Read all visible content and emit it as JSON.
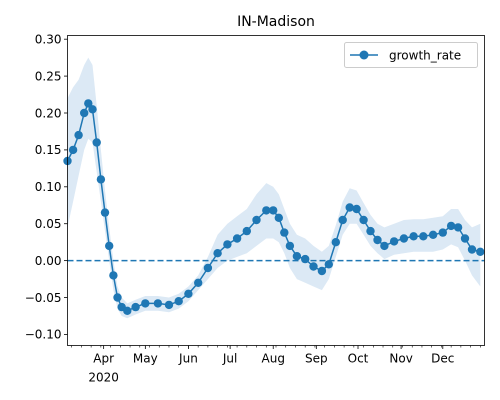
{
  "chart_data": {
    "type": "line",
    "title": "IN-Madison",
    "xlabel": "",
    "ylabel": "",
    "x_range": [
      "2020-03-06",
      "2020-12-31"
    ],
    "ylim": [
      -0.115,
      0.305
    ],
    "y_ticks": [
      -0.1,
      -0.05,
      0.0,
      0.05,
      0.1,
      0.15,
      0.2,
      0.25,
      0.3
    ],
    "y_tick_labels": [
      "−0.10",
      "−0.05",
      "0.00",
      "0.05",
      "0.10",
      "0.15",
      "0.20",
      "0.25",
      "0.30"
    ],
    "x_tick_labels": [
      {
        "date": "2020-04-01",
        "label": "Apr",
        "sublabel": "2020"
      },
      {
        "date": "2020-05-01",
        "label": "May"
      },
      {
        "date": "2020-06-01",
        "label": "Jun"
      },
      {
        "date": "2020-07-01",
        "label": "Jul"
      },
      {
        "date": "2020-08-01",
        "label": "Aug"
      },
      {
        "date": "2020-09-01",
        "label": "Sep"
      },
      {
        "date": "2020-10-01",
        "label": "Oct"
      },
      {
        "date": "2020-11-01",
        "label": "Nov"
      },
      {
        "date": "2020-12-01",
        "label": "Dec"
      }
    ],
    "reference_line": {
      "y": 0.0,
      "style": "dashed",
      "color": "#1f77b4"
    },
    "grid": false,
    "legend_position": "top-right",
    "series": [
      {
        "name": "growth_rate",
        "color": "#1f77b4",
        "band_color": "#dce9f5",
        "points": [
          {
            "x": "2020-03-06",
            "y": 0.135,
            "lo": 0.045,
            "hi": 0.22
          },
          {
            "x": "2020-03-10",
            "y": 0.15,
            "lo": 0.08,
            "hi": 0.235
          },
          {
            "x": "2020-03-14",
            "y": 0.17,
            "lo": 0.115,
            "hi": 0.245
          },
          {
            "x": "2020-03-18",
            "y": 0.2,
            "lo": 0.15,
            "hi": 0.265
          },
          {
            "x": "2020-03-21",
            "y": 0.213,
            "lo": 0.165,
            "hi": 0.275
          },
          {
            "x": "2020-03-24",
            "y": 0.205,
            "lo": 0.16,
            "hi": 0.265
          },
          {
            "x": "2020-03-27",
            "y": 0.16,
            "lo": 0.12,
            "hi": 0.21
          },
          {
            "x": "2020-03-30",
            "y": 0.11,
            "lo": 0.08,
            "hi": 0.15
          },
          {
            "x": "2020-04-02",
            "y": 0.065,
            "lo": 0.04,
            "hi": 0.095
          },
          {
            "x": "2020-04-05",
            "y": 0.02,
            "lo": 0.0,
            "hi": 0.045
          },
          {
            "x": "2020-04-08",
            "y": -0.02,
            "lo": -0.04,
            "hi": 0.0
          },
          {
            "x": "2020-04-11",
            "y": -0.05,
            "lo": -0.065,
            "hi": -0.035
          },
          {
            "x": "2020-04-14",
            "y": -0.063,
            "lo": -0.075,
            "hi": -0.05
          },
          {
            "x": "2020-04-18",
            "y": -0.068,
            "lo": -0.078,
            "hi": -0.058
          },
          {
            "x": "2020-04-24",
            "y": -0.063,
            "lo": -0.073,
            "hi": -0.053
          },
          {
            "x": "2020-05-01",
            "y": -0.058,
            "lo": -0.068,
            "hi": -0.048
          },
          {
            "x": "2020-05-10",
            "y": -0.058,
            "lo": -0.068,
            "hi": -0.048
          },
          {
            "x": "2020-05-18",
            "y": -0.06,
            "lo": -0.07,
            "hi": -0.05
          },
          {
            "x": "2020-05-25",
            "y": -0.055,
            "lo": -0.065,
            "hi": -0.045
          },
          {
            "x": "2020-06-01",
            "y": -0.045,
            "lo": -0.055,
            "hi": -0.035
          },
          {
            "x": "2020-06-08",
            "y": -0.03,
            "lo": -0.04,
            "hi": -0.02
          },
          {
            "x": "2020-06-15",
            "y": -0.01,
            "lo": -0.025,
            "hi": 0.005
          },
          {
            "x": "2020-06-22",
            "y": 0.01,
            "lo": -0.01,
            "hi": 0.035
          },
          {
            "x": "2020-06-29",
            "y": 0.022,
            "lo": 0.0,
            "hi": 0.05
          },
          {
            "x": "2020-07-06",
            "y": 0.03,
            "lo": 0.005,
            "hi": 0.06
          },
          {
            "x": "2020-07-13",
            "y": 0.04,
            "lo": 0.01,
            "hi": 0.07
          },
          {
            "x": "2020-07-20",
            "y": 0.055,
            "lo": 0.02,
            "hi": 0.09
          },
          {
            "x": "2020-07-27",
            "y": 0.068,
            "lo": 0.03,
            "hi": 0.105
          },
          {
            "x": "2020-08-01",
            "y": 0.068,
            "lo": 0.03,
            "hi": 0.1
          },
          {
            "x": "2020-08-05",
            "y": 0.058,
            "lo": 0.025,
            "hi": 0.09
          },
          {
            "x": "2020-08-09",
            "y": 0.038,
            "lo": 0.01,
            "hi": 0.07
          },
          {
            "x": "2020-08-13",
            "y": 0.02,
            "lo": -0.01,
            "hi": 0.05
          },
          {
            "x": "2020-08-18",
            "y": 0.006,
            "lo": -0.025,
            "hi": 0.035
          },
          {
            "x": "2020-08-24",
            "y": 0.002,
            "lo": -0.03,
            "hi": 0.03
          },
          {
            "x": "2020-08-30",
            "y": -0.008,
            "lo": -0.035,
            "hi": 0.02
          },
          {
            "x": "2020-09-05",
            "y": -0.014,
            "lo": -0.04,
            "hi": 0.012
          },
          {
            "x": "2020-09-10",
            "y": -0.005,
            "lo": -0.025,
            "hi": 0.02
          },
          {
            "x": "2020-09-15",
            "y": 0.025,
            "lo": 0.005,
            "hi": 0.048
          },
          {
            "x": "2020-09-20",
            "y": 0.055,
            "lo": 0.035,
            "hi": 0.08
          },
          {
            "x": "2020-09-25",
            "y": 0.072,
            "lo": 0.05,
            "hi": 0.098
          },
          {
            "x": "2020-09-30",
            "y": 0.07,
            "lo": 0.05,
            "hi": 0.095
          },
          {
            "x": "2020-10-05",
            "y": 0.055,
            "lo": 0.035,
            "hi": 0.078
          },
          {
            "x": "2020-10-10",
            "y": 0.04,
            "lo": 0.02,
            "hi": 0.062
          },
          {
            "x": "2020-10-15",
            "y": 0.028,
            "lo": 0.01,
            "hi": 0.05
          },
          {
            "x": "2020-10-20",
            "y": 0.02,
            "lo": 0.002,
            "hi": 0.045
          },
          {
            "x": "2020-10-27",
            "y": 0.026,
            "lo": 0.008,
            "hi": 0.05
          },
          {
            "x": "2020-11-03",
            "y": 0.03,
            "lo": 0.01,
            "hi": 0.055
          },
          {
            "x": "2020-11-10",
            "y": 0.033,
            "lo": 0.012,
            "hi": 0.056
          },
          {
            "x": "2020-11-17",
            "y": 0.033,
            "lo": 0.012,
            "hi": 0.056
          },
          {
            "x": "2020-11-24",
            "y": 0.035,
            "lo": 0.012,
            "hi": 0.058
          },
          {
            "x": "2020-12-01",
            "y": 0.038,
            "lo": 0.015,
            "hi": 0.06
          },
          {
            "x": "2020-12-07",
            "y": 0.047,
            "lo": 0.022,
            "hi": 0.07
          },
          {
            "x": "2020-12-12",
            "y": 0.045,
            "lo": 0.018,
            "hi": 0.07
          },
          {
            "x": "2020-12-17",
            "y": 0.03,
            "lo": 0.0,
            "hi": 0.055
          },
          {
            "x": "2020-12-22",
            "y": 0.015,
            "lo": -0.02,
            "hi": 0.045
          },
          {
            "x": "2020-12-28",
            "y": 0.012,
            "lo": -0.035,
            "hi": 0.05
          }
        ]
      }
    ]
  }
}
